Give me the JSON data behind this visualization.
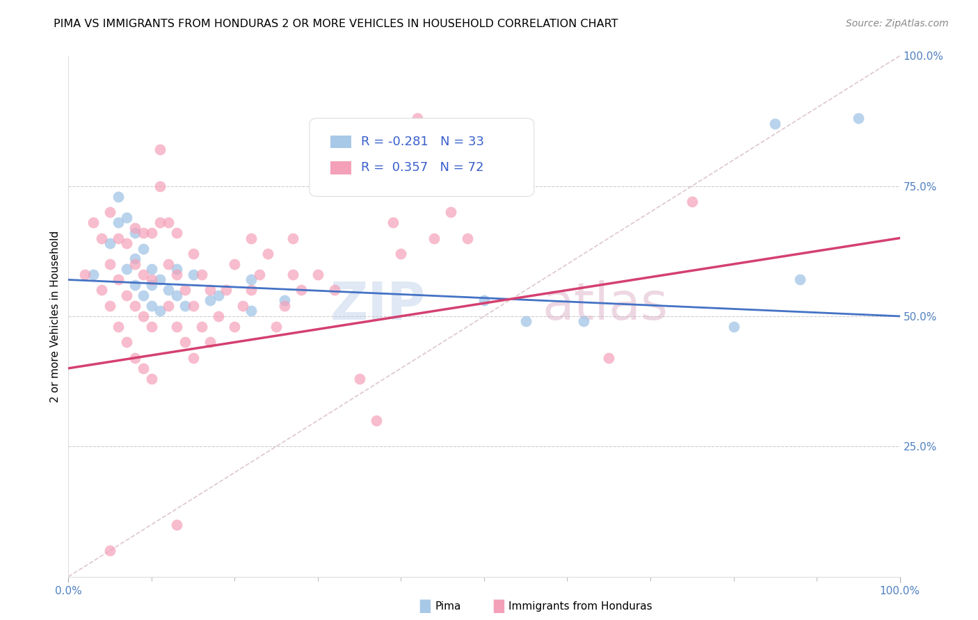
{
  "title": "PIMA VS IMMIGRANTS FROM HONDURAS 2 OR MORE VEHICLES IN HOUSEHOLD CORRELATION CHART",
  "source": "Source: ZipAtlas.com",
  "ylabel": "2 or more Vehicles in Household",
  "pima_color": "#a8c8e8",
  "honduras_color": "#f4a0b8",
  "pima_r": -0.281,
  "pima_n": 33,
  "honduras_r": 0.357,
  "honduras_n": 72,
  "pima_line_color": "#4472c4",
  "honduras_line_color": "#d44070",
  "diagonal_color": "#c8a0b0",
  "watermark_zip": "ZIP",
  "watermark_atlas": "atlas",
  "legend_r_color": "#3a5fcd",
  "tick_color": "#5080c0",
  "pima_x": [
    3,
    5,
    6,
    6,
    7,
    7,
    8,
    8,
    8,
    9,
    9,
    10,
    10,
    10,
    11,
    11,
    12,
    13,
    13,
    14,
    15,
    17,
    18,
    22,
    22,
    26,
    50,
    55,
    62,
    80,
    85,
    88,
    95
  ],
  "pima_y": [
    58,
    64,
    68,
    73,
    59,
    69,
    56,
    61,
    66,
    54,
    63,
    52,
    56,
    59,
    51,
    57,
    55,
    54,
    59,
    52,
    58,
    53,
    54,
    51,
    57,
    53,
    53,
    49,
    49,
    48,
    87,
    57,
    88
  ],
  "honduras_x": [
    2,
    3,
    4,
    4,
    5,
    5,
    5,
    6,
    6,
    6,
    7,
    7,
    7,
    8,
    8,
    8,
    8,
    9,
    9,
    9,
    9,
    10,
    10,
    10,
    10,
    11,
    11,
    11,
    12,
    12,
    12,
    13,
    13,
    13,
    14,
    14,
    15,
    15,
    15,
    16,
    16,
    17,
    17,
    18,
    19,
    20,
    20,
    21,
    22,
    22,
    23,
    24,
    25,
    26,
    27,
    27,
    28,
    30,
    32,
    35,
    37,
    39,
    40,
    42,
    44,
    46,
    48,
    50,
    65,
    75,
    13,
    5
  ],
  "honduras_y": [
    58,
    68,
    55,
    65,
    52,
    60,
    70,
    48,
    57,
    65,
    45,
    54,
    64,
    42,
    52,
    60,
    67,
    40,
    50,
    58,
    66,
    38,
    48,
    57,
    66,
    68,
    75,
    82,
    52,
    60,
    68,
    48,
    58,
    66,
    45,
    55,
    42,
    52,
    62,
    48,
    58,
    45,
    55,
    50,
    55,
    48,
    60,
    52,
    55,
    65,
    58,
    62,
    48,
    52,
    58,
    65,
    55,
    58,
    55,
    38,
    30,
    68,
    62,
    88,
    65,
    70,
    65,
    75,
    42,
    72,
    10,
    5
  ]
}
